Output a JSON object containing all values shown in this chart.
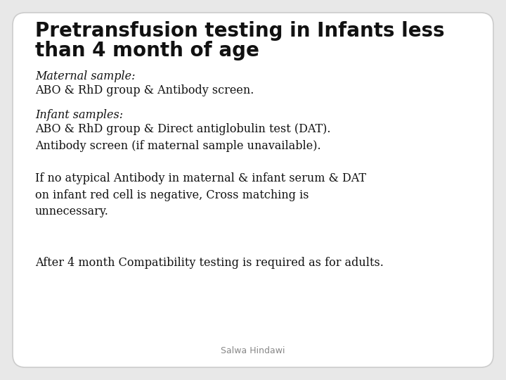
{
  "background_color": "#e8e8e8",
  "box_color": "#ffffff",
  "box_edge_color": "#cccccc",
  "title_line1": "Pretransfusion testing in Infants less",
  "title_line2": "than 4 month of age",
  "title_fontsize": 20,
  "title_fontweight": "bold",
  "body_fontsize": 11.5,
  "label_fontsize": 11.5,
  "footer_fontsize": 9,
  "text_color": "#111111",
  "footer_color": "#888888",
  "footer": "Salwa Hindawi",
  "sections": [
    {
      "label": "Maternal sample:",
      "label_italic": true,
      "body": "ABO & RhD group & Antibody screen."
    },
    {
      "label": "Infant samples:",
      "label_italic": true,
      "body": "ABO & RhD group & Direct antiglobulin test (DAT).\nAntibody screen (if maternal sample unavailable)."
    },
    {
      "label": "",
      "label_italic": false,
      "body": "If no atypical Antibody in maternal & infant serum & DAT\non infant red cell is negative, Cross matching is\nunnecessary."
    },
    {
      "label": "",
      "label_italic": false,
      "body": "After 4 month Compatibility testing is required as for adults."
    }
  ]
}
